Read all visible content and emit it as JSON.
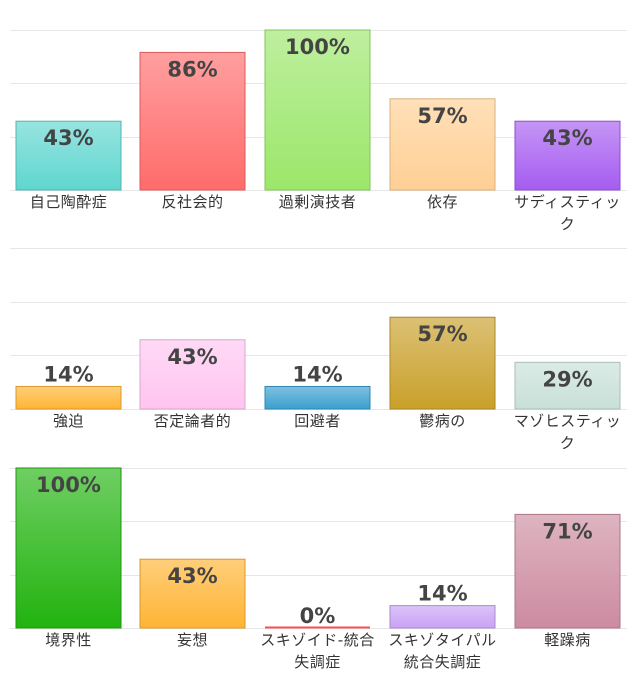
{
  "chart_data": [
    {
      "type": "bar",
      "ylim": [
        0,
        100
      ],
      "grid": true,
      "categories": [
        "自己陶酔症",
        "反社会的",
        "過剰演技者",
        "依存",
        "サディスティック"
      ],
      "values": [
        43,
        86,
        100,
        57,
        43
      ],
      "labels": [
        "43%",
        "86%",
        "100%",
        "57%",
        "43%"
      ],
      "colors": [
        "#5fd6cf",
        "#ff6b6b",
        "#9be76a",
        "#ffcf94",
        "#a55cf0"
      ]
    },
    {
      "type": "bar",
      "ylim": [
        0,
        100
      ],
      "grid": true,
      "categories": [
        "強迫",
        "否定論者的",
        "回避者",
        "鬱病の",
        "マゾヒスティック"
      ],
      "values": [
        14,
        43,
        14,
        57,
        29
      ],
      "labels": [
        "14%",
        "43%",
        "14%",
        "57%",
        "29%"
      ],
      "colors": [
        "#ffb433",
        "#ffc5ef",
        "#3a9fcf",
        "#c9a02a",
        "#c8e0d8"
      ]
    },
    {
      "type": "bar",
      "ylim": [
        0,
        100
      ],
      "grid": true,
      "categories": [
        "境界性",
        "妄想",
        "スキゾイド-統合失調症",
        "スキゾタイパル統合失調症",
        "軽躁病"
      ],
      "values": [
        100,
        43,
        0,
        14,
        71
      ],
      "labels": [
        "100%",
        "43%",
        "0%",
        "14%",
        "71%"
      ],
      "colors": [
        "#22b30f",
        "#ffb433",
        "#ff4d4d",
        "#c9a2f5",
        "#cc8ba0"
      ]
    }
  ]
}
